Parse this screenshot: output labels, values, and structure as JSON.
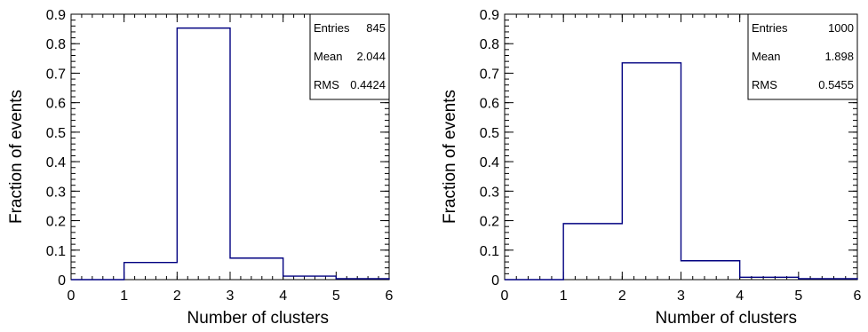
{
  "chart_data": [
    {
      "type": "histogram",
      "xlabel": "Number of clusters",
      "ylabel": "Fraction of events",
      "xlim": [
        0,
        6
      ],
      "ylim": [
        0,
        0.9
      ],
      "x_ticks": [
        "0",
        "1",
        "2",
        "3",
        "4",
        "5",
        "6"
      ],
      "y_ticks": [
        "0",
        "0.1",
        "0.2",
        "0.3",
        "0.4",
        "0.5",
        "0.6",
        "0.7",
        "0.8",
        "0.9"
      ],
      "bin_edges": [
        0,
        1,
        2,
        3,
        4,
        5,
        6
      ],
      "values": [
        0.0,
        0.058,
        0.853,
        0.073,
        0.012,
        0.003
      ],
      "line_color": "#000080",
      "stats": [
        {
          "label": "Entries",
          "value": "845"
        },
        {
          "label": "Mean",
          "value": "2.044"
        },
        {
          "label": "RMS",
          "value": "0.4424"
        }
      ]
    },
    {
      "type": "histogram",
      "xlabel": "Number of clusters",
      "ylabel": "Fraction of events",
      "xlim": [
        0,
        6
      ],
      "ylim": [
        0,
        0.9
      ],
      "x_ticks": [
        "0",
        "1",
        "2",
        "3",
        "4",
        "5",
        "6"
      ],
      "y_ticks": [
        "0",
        "0.1",
        "0.2",
        "0.3",
        "0.4",
        "0.5",
        "0.6",
        "0.7",
        "0.8",
        "0.9"
      ],
      "bin_edges": [
        0,
        1,
        2,
        3,
        4,
        5,
        6
      ],
      "values": [
        0.0,
        0.19,
        0.735,
        0.064,
        0.008,
        0.003
      ],
      "line_color": "#000080",
      "stats": [
        {
          "label": "Entries",
          "value": "1000"
        },
        {
          "label": "Mean",
          "value": "1.898"
        },
        {
          "label": "RMS",
          "value": "0.5455"
        }
      ]
    }
  ]
}
